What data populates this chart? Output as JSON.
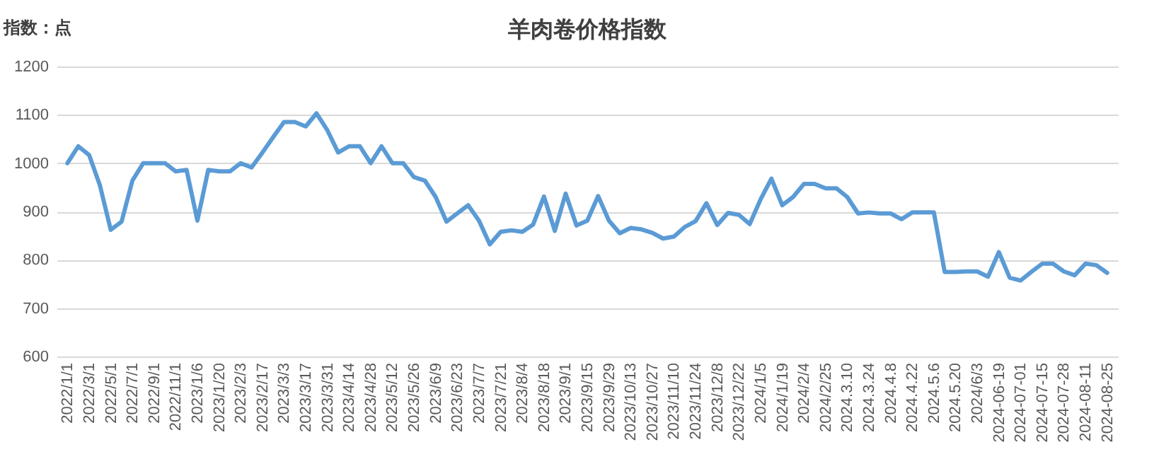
{
  "chart_data": {
    "type": "line",
    "title": "羊肉卷价格指数",
    "ylabel": "指数：点",
    "categories": [
      "2022/1/1",
      null,
      "2022/3/1",
      null,
      "2022/5/1",
      null,
      "2022/7/1",
      null,
      "2022/9/1",
      null,
      "2022/11/1",
      null,
      "2023/1/6",
      null,
      "2023/1/20",
      null,
      "2023/2/3",
      null,
      "2023/2/17",
      null,
      "2023/3/3",
      null,
      "2023/3/17",
      null,
      "2023/3/31",
      null,
      "2023/4/14",
      null,
      "2023/4/28",
      null,
      "2023/5/12",
      null,
      "2023/5/26",
      null,
      "2023/6/9",
      null,
      "2023/6/23",
      null,
      "2023/7/7",
      null,
      "2023/7/21",
      null,
      "2023/8/4",
      null,
      "2023/8/18",
      null,
      "2023/9/1",
      null,
      "2023/9/15",
      null,
      "2023/9/29",
      null,
      "2023/10/13",
      null,
      "2023/10/27",
      null,
      "2023/11/10",
      null,
      "2023/11/24",
      null,
      "2023/12/8",
      null,
      "2023/12/22",
      null,
      "2024/1/5",
      null,
      "2024/1/19",
      null,
      "2024/2/4",
      null,
      "2024/2/25",
      null,
      "2024.3.10",
      null,
      "2024.3.24",
      null,
      "2024.4.8",
      null,
      "2024.4.22",
      null,
      "2024.5.6",
      null,
      "2024.5.20",
      null,
      "2024/6/3",
      null,
      "2024-06-19",
      null,
      "2024-07-01",
      null,
      "2024-07-15",
      null,
      "2024-07-28",
      null,
      "2024-08-11",
      null,
      "2024-08-25"
    ],
    "series": [
      {
        "color": "#5b9bd5",
        "values": [
          1000,
          1035,
          1017,
          954,
          862,
          879,
          964,
          1000,
          1000,
          1000,
          983,
          986,
          881,
          986,
          983,
          983,
          1000,
          991,
          1022,
          1054,
          1085,
          1085,
          1076,
          1103,
          1068,
          1022,
          1035,
          1035,
          1000,
          1035,
          1000,
          1000,
          971,
          964,
          930,
          879,
          896,
          913,
          881,
          832,
          858,
          861,
          858,
          873,
          931,
          860,
          937,
          871,
          881,
          932,
          881,
          855,
          866,
          863,
          856,
          844,
          848,
          868,
          880,
          917,
          872,
          897,
          893,
          874,
          925,
          968,
          913,
          930,
          957,
          957,
          948,
          948,
          930,
          896,
          898,
          896,
          896,
          884,
          898,
          898,
          898,
          775,
          775,
          776,
          776,
          765,
          816,
          763,
          757,
          775,
          792,
          792,
          776,
          768,
          792,
          789,
          773
        ]
      }
    ],
    "ylim": [
      600,
      1200
    ],
    "yticks": [
      600,
      700,
      800,
      900,
      1000,
      1100,
      1200
    ],
    "grid": "y",
    "marker": "none",
    "line_style": "solid"
  }
}
